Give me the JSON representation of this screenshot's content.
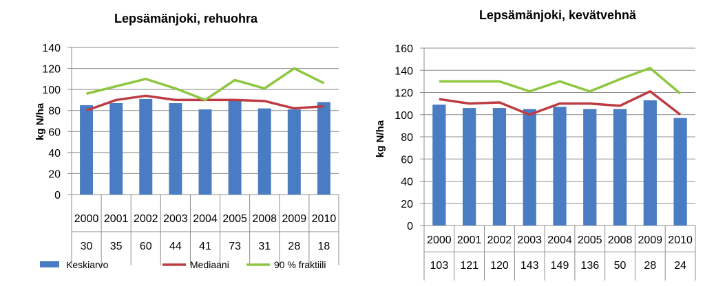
{
  "chart_data": [
    {
      "type": "bar",
      "title": "Lepsämänjoki, rehuohra",
      "xlabel": "",
      "ylabel": "kg N/ha",
      "ylim": [
        0,
        140
      ],
      "yticks": [
        0,
        20,
        40,
        60,
        80,
        100,
        120,
        140
      ],
      "categories": [
        "2000",
        "2001",
        "2002",
        "2003",
        "2004",
        "2005",
        "2008",
        "2009",
        "2010"
      ],
      "counts": [
        "30",
        "35",
        "60",
        "44",
        "41",
        "73",
        "31",
        "28",
        "18"
      ],
      "grid": true,
      "legend_position": "bottom",
      "series": [
        {
          "name": "Keskiarvo",
          "kind": "bar",
          "color": "#4a7cc3",
          "values": [
            85,
            87,
            91,
            87,
            81,
            89,
            82,
            81,
            88
          ]
        },
        {
          "name": "Mediaani",
          "kind": "line",
          "color": "#be3b42",
          "values": [
            80,
            90,
            94,
            90,
            90,
            90,
            89,
            82,
            84
          ]
        },
        {
          "name": "90 % fraktiili",
          "kind": "line",
          "color": "#8dc63f",
          "values": [
            96,
            103,
            110,
            101,
            90,
            109,
            101,
            120,
            106
          ]
        }
      ]
    },
    {
      "type": "bar",
      "title": "Lepsämänjoki, kevätvehnä",
      "xlabel": "",
      "ylabel": "kg N/ha",
      "ylim": [
        0,
        160
      ],
      "yticks": [
        0,
        20,
        40,
        60,
        80,
        100,
        120,
        140,
        160
      ],
      "categories": [
        "2000",
        "2001",
        "2002",
        "2003",
        "2004",
        "2005",
        "2008",
        "2009",
        "2010"
      ],
      "counts": [
        "103",
        "121",
        "120",
        "143",
        "149",
        "136",
        "50",
        "28",
        "24"
      ],
      "grid": true,
      "legend_position": "none",
      "series": [
        {
          "name": "Keskiarvo",
          "kind": "bar",
          "color": "#4a7cc3",
          "values": [
            109,
            106,
            106,
            105,
            107,
            105,
            105,
            113,
            97
          ]
        },
        {
          "name": "Mediaani",
          "kind": "line",
          "color": "#be3b42",
          "values": [
            114,
            110,
            111,
            100,
            110,
            110,
            108,
            121,
            100
          ]
        },
        {
          "name": "90 % fraktiili",
          "kind": "line",
          "color": "#8dc63f",
          "values": [
            130,
            130,
            130,
            121,
            130,
            121,
            132,
            142,
            119
          ]
        }
      ]
    }
  ],
  "legend": {
    "items": [
      {
        "label": "Keskiarvo",
        "kind": "bar",
        "color": "#4a7cc3"
      },
      {
        "label": "Mediaani",
        "kind": "line",
        "color": "#be3b42"
      },
      {
        "label": "90 % fraktiili",
        "kind": "line",
        "color": "#8dc63f"
      }
    ]
  }
}
